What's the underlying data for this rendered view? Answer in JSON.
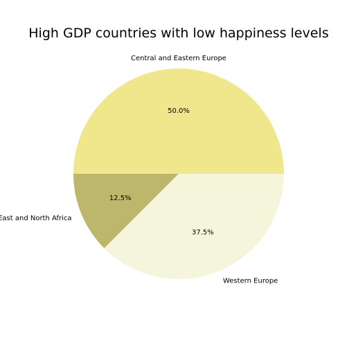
{
  "chart_data": {
    "type": "pie",
    "title": "High GDP countries with low happiness levels",
    "slices": [
      {
        "label": "Central and Eastern Europe",
        "value": 50.0,
        "pct_label": "50.0%",
        "color": "#F0E68C"
      },
      {
        "label": "Middle East and North Africa",
        "value": 12.5,
        "pct_label": "12.5%",
        "color": "#BDB76B"
      },
      {
        "label": "Western Europe",
        "value": 37.5,
        "pct_label": "37.5%",
        "color": "#F5F5DC"
      }
    ],
    "start_angle_deg": 0,
    "direction": "counterclockwise",
    "legend": "none"
  }
}
